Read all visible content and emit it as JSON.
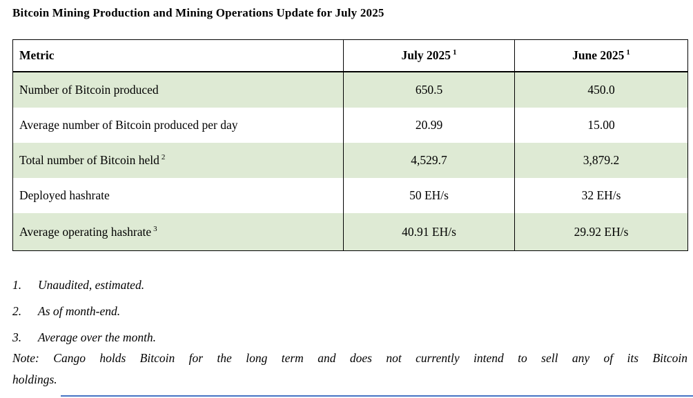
{
  "title": "Bitcoin Mining Production and Mining Operations Update for July 2025",
  "table": {
    "headers": [
      {
        "label": "Metric",
        "sup": ""
      },
      {
        "label": "July 2025",
        "sup": "1"
      },
      {
        "label": "June 2025",
        "sup": "1"
      }
    ],
    "rows": [
      {
        "metric": "Number of Bitcoin produced",
        "sup": "",
        "july_2025": "650.5",
        "june_2025": "450.0"
      },
      {
        "metric": "Average number of Bitcoin produced per day",
        "sup": "",
        "july_2025": "20.99",
        "june_2025": "15.00"
      },
      {
        "metric": "Total number of Bitcoin held",
        "sup": "2",
        "july_2025": "4,529.7",
        "june_2025": "3,879.2"
      },
      {
        "metric": "Deployed hashrate",
        "sup": "",
        "july_2025": "50 EH/s",
        "june_2025": "32 EH/s"
      },
      {
        "metric": "Average operating hashrate",
        "sup": "3",
        "july_2025": "40.91 EH/s",
        "june_2025": "29.92 EH/s"
      }
    ]
  },
  "footnotes": [
    {
      "num": "1.",
      "text": "Unaudited, estimated."
    },
    {
      "num": "2.",
      "text": "As of month-end."
    },
    {
      "num": "3.",
      "text": "Average over the month."
    }
  ],
  "note_lines": [
    "Note: Cango holds Bitcoin for the long term and does not currently intend to sell any of its Bitcoin",
    "holdings."
  ],
  "colors": {
    "row_shade_green": "#deead4",
    "table_border": "#000000",
    "bottom_rule_blue": "#4472c4"
  }
}
